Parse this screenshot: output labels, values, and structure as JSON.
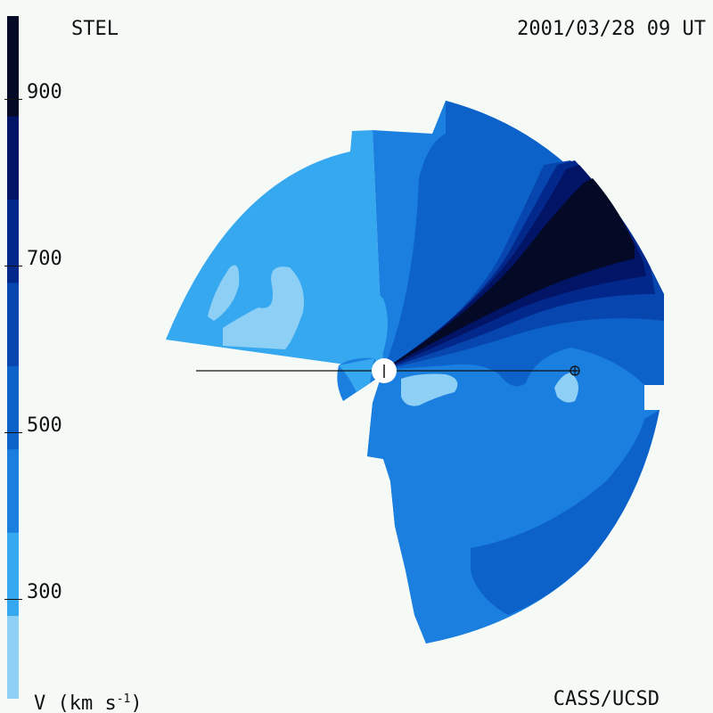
{
  "header": {
    "source_label": "STEL",
    "timestamp": "2001/03/28 09 UT"
  },
  "footer": {
    "quantity_label_prefix": "V (km s",
    "quantity_label_exp": "-1",
    "quantity_label_suffix": ")",
    "credit": "CASS/UCSD"
  },
  "chart_data": {
    "type": "heatmap",
    "title": "",
    "quantity": "V (km s-1)",
    "colorbar": {
      "range": [
        180,
        1000
      ],
      "ticks": [
        300,
        500,
        700,
        900
      ],
      "tick_labels": [
        "300",
        "500",
        "700",
        "900"
      ],
      "levels": [
        {
          "from": 180,
          "to": 280,
          "color": "#8ecff5"
        },
        {
          "from": 280,
          "to": 380,
          "color": "#36a8f0"
        },
        {
          "from": 380,
          "to": 480,
          "color": "#1b7fe0"
        },
        {
          "from": 480,
          "to": 580,
          "color": "#0c62c8"
        },
        {
          "from": 580,
          "to": 680,
          "color": "#0646ae"
        },
        {
          "from": 680,
          "to": 780,
          "color": "#03288c"
        },
        {
          "from": 780,
          "to": 880,
          "color": "#021466"
        },
        {
          "from": 880,
          "to": 1000,
          "color": "#040a26"
        }
      ]
    },
    "markers": [
      {
        "name": "sun-marker",
        "symbol": "|"
      },
      {
        "name": "earth-marker",
        "symbol": "⊕"
      }
    ]
  }
}
